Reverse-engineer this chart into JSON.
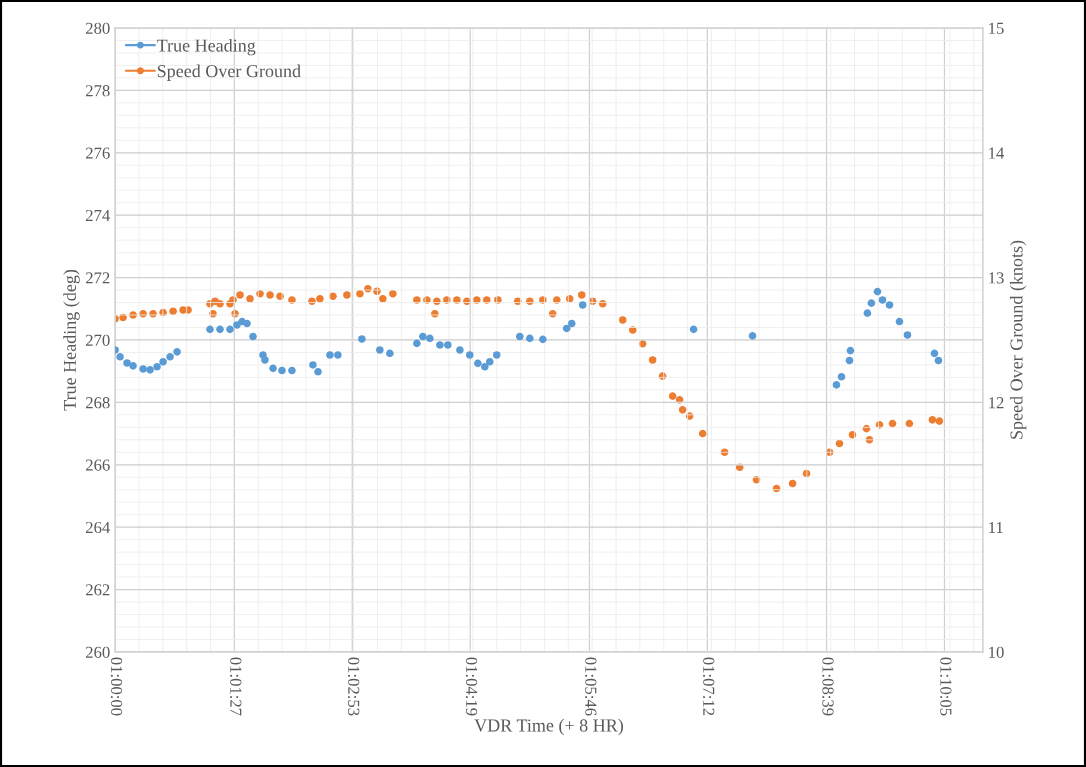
{
  "chart_data": {
    "type": "scatter",
    "xlabel": "VDR Time (+ 8 HR)",
    "ylabel": "True Heading (deg)",
    "y2label": "Speed Over Ground (knots)",
    "xlim": [
      1.0,
      1.17583
    ],
    "xticks": [
      {
        "value": 1.0,
        "label": "01:00:00"
      },
      {
        "value": 1.024167,
        "label": "01:01:27"
      },
      {
        "value": 1.048056,
        "label": "01:02:53"
      },
      {
        "value": 1.071944,
        "label": "01:04:19"
      },
      {
        "value": 1.096111,
        "label": "01:05:46"
      },
      {
        "value": 1.12,
        "label": "01:07:12"
      },
      {
        "value": 1.144167,
        "label": "01:08:39"
      },
      {
        "value": 1.168056,
        "label": "01:10:05"
      }
    ],
    "ylim": [
      260,
      280
    ],
    "yticks": [
      260,
      262,
      264,
      266,
      268,
      270,
      272,
      274,
      276,
      278,
      280
    ],
    "y2lim": [
      10,
      15
    ],
    "y2ticks": [
      10,
      11,
      12,
      13,
      14,
      15
    ],
    "grid": true,
    "legend": "top left",
    "marker": "circle",
    "series": [
      {
        "name": "True Heading",
        "color": "#5b9bd5",
        "axis": "y",
        "x": [
          1.0,
          1.001,
          1.00242,
          1.00364,
          1.00567,
          1.00708,
          1.0085,
          1.00972,
          1.01114,
          1.01256,
          1.01922,
          1.02125,
          1.02328,
          1.02469,
          1.02572,
          1.02672,
          1.02794,
          1.02997,
          1.03036,
          1.032,
          1.03381,
          1.03583,
          1.04008,
          1.04111,
          1.04353,
          1.04514,
          1.05,
          1.05364,
          1.05567,
          1.06114,
          1.06236,
          1.06378,
          1.06581,
          1.06742,
          1.06986,
          1.07186,
          1.0735,
          1.07492,
          1.07592,
          1.07733,
          1.082,
          1.08403,
          1.08667,
          1.0915,
          1.09253,
          1.09475,
          1.11722,
          1.12917,
          1.14617,
          1.14719,
          1.14881,
          1.149,
          1.15244,
          1.15325,
          1.15447,
          1.1555,
          1.15692,
          1.15894,
          1.16056,
          1.16603,
          1.16683
        ],
        "values": [
          269.68,
          269.46,
          269.26,
          269.17,
          269.07,
          269.04,
          269.14,
          269.3,
          269.46,
          269.62,
          270.34,
          270.34,
          270.34,
          270.48,
          270.59,
          270.53,
          270.11,
          269.52,
          269.36,
          269.09,
          269.02,
          269.02,
          269.2,
          268.98,
          269.52,
          269.52,
          270.03,
          269.68,
          269.57,
          269.89,
          270.11,
          270.05,
          269.84,
          269.84,
          269.68,
          269.52,
          269.25,
          269.14,
          269.3,
          269.52,
          270.11,
          270.05,
          270.02,
          270.37,
          270.53,
          271.12,
          270.34,
          270.13,
          268.56,
          268.82,
          269.34,
          269.66,
          270.86,
          271.18,
          271.55,
          271.28,
          271.12,
          270.59,
          270.16,
          269.57,
          269.34
        ]
      },
      {
        "name": "Speed Over Ground",
        "color": "#ed7d31",
        "axis": "y2",
        "x": [
          1.0,
          1.00161,
          1.00364,
          1.00567,
          1.00769,
          1.00972,
          1.01175,
          1.01378,
          1.01478,
          1.01922,
          1.01983,
          1.02025,
          1.02125,
          1.02328,
          1.02389,
          1.02431,
          1.02531,
          1.02733,
          1.02936,
          1.03139,
          1.03342,
          1.03583,
          1.03989,
          1.0415,
          1.04414,
          1.04697,
          1.04961,
          1.05122,
          1.05306,
          1.05425,
          1.05628,
          1.06114,
          1.06317,
          1.06478,
          1.06519,
          1.06722,
          1.06925,
          1.07128,
          1.07328,
          1.07531,
          1.07756,
          1.08158,
          1.08403,
          1.08667,
          1.08867,
          1.0895,
          1.09211,
          1.09456,
          1.09678,
          1.09881,
          1.10286,
          1.10489,
          1.10689,
          1.10892,
          1.11094,
          1.11297,
          1.11439,
          1.115,
          1.11642,
          1.11906,
          1.1235,
          1.12656,
          1.12997,
          1.13403,
          1.13728,
          1.14011,
          1.14478,
          1.14678,
          1.14942,
          1.15225,
          1.15286,
          1.15489,
          1.15753,
          1.16094,
          1.16561,
          1.16703
        ],
        "values": [
          12.67,
          12.68,
          12.7,
          12.71,
          12.71,
          12.72,
          12.73,
          12.74,
          12.74,
          12.79,
          12.71,
          12.81,
          12.79,
          12.79,
          12.82,
          12.71,
          12.86,
          12.83,
          12.87,
          12.86,
          12.85,
          12.82,
          12.81,
          12.83,
          12.85,
          12.86,
          12.87,
          12.91,
          12.89,
          12.83,
          12.87,
          12.82,
          12.82,
          12.71,
          12.81,
          12.82,
          12.82,
          12.81,
          12.82,
          12.82,
          12.82,
          12.81,
          12.81,
          12.82,
          12.71,
          12.82,
          12.83,
          12.86,
          12.81,
          12.79,
          12.66,
          12.58,
          12.47,
          12.34,
          12.21,
          12.05,
          12.02,
          11.94,
          11.89,
          11.75,
          11.6,
          11.48,
          11.38,
          11.31,
          11.35,
          11.43,
          11.6,
          11.67,
          11.74,
          11.79,
          11.7,
          11.82,
          11.83,
          11.83,
          11.86,
          11.85
        ]
      }
    ]
  }
}
